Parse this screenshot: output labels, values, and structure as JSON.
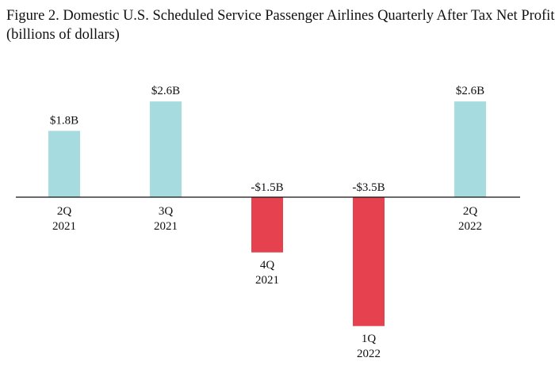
{
  "chart_data": {
    "type": "bar",
    "title": "Figure 2. Domestic U.S. Scheduled Service Passenger Airlines Quarterly After Tax Net Profit",
    "subtitle": "(billions of dollars)",
    "categories": [
      [
        "2Q",
        "2021"
      ],
      [
        "3Q",
        "2021"
      ],
      [
        "4Q",
        "2021"
      ],
      [
        "1Q",
        "2022"
      ],
      [
        "2Q",
        "2022"
      ]
    ],
    "values": [
      1.8,
      2.6,
      -1.5,
      -3.5,
      2.6
    ],
    "data_labels": [
      "$1.8B",
      "$2.6B",
      "-$1.5B",
      "-$3.5B",
      "$2.6B"
    ],
    "ylim": [
      -3.5,
      2.6
    ],
    "grid": false,
    "colors": {
      "positive": "#a6dcdf",
      "negative": "#e6414f",
      "axis": "#111111"
    }
  }
}
